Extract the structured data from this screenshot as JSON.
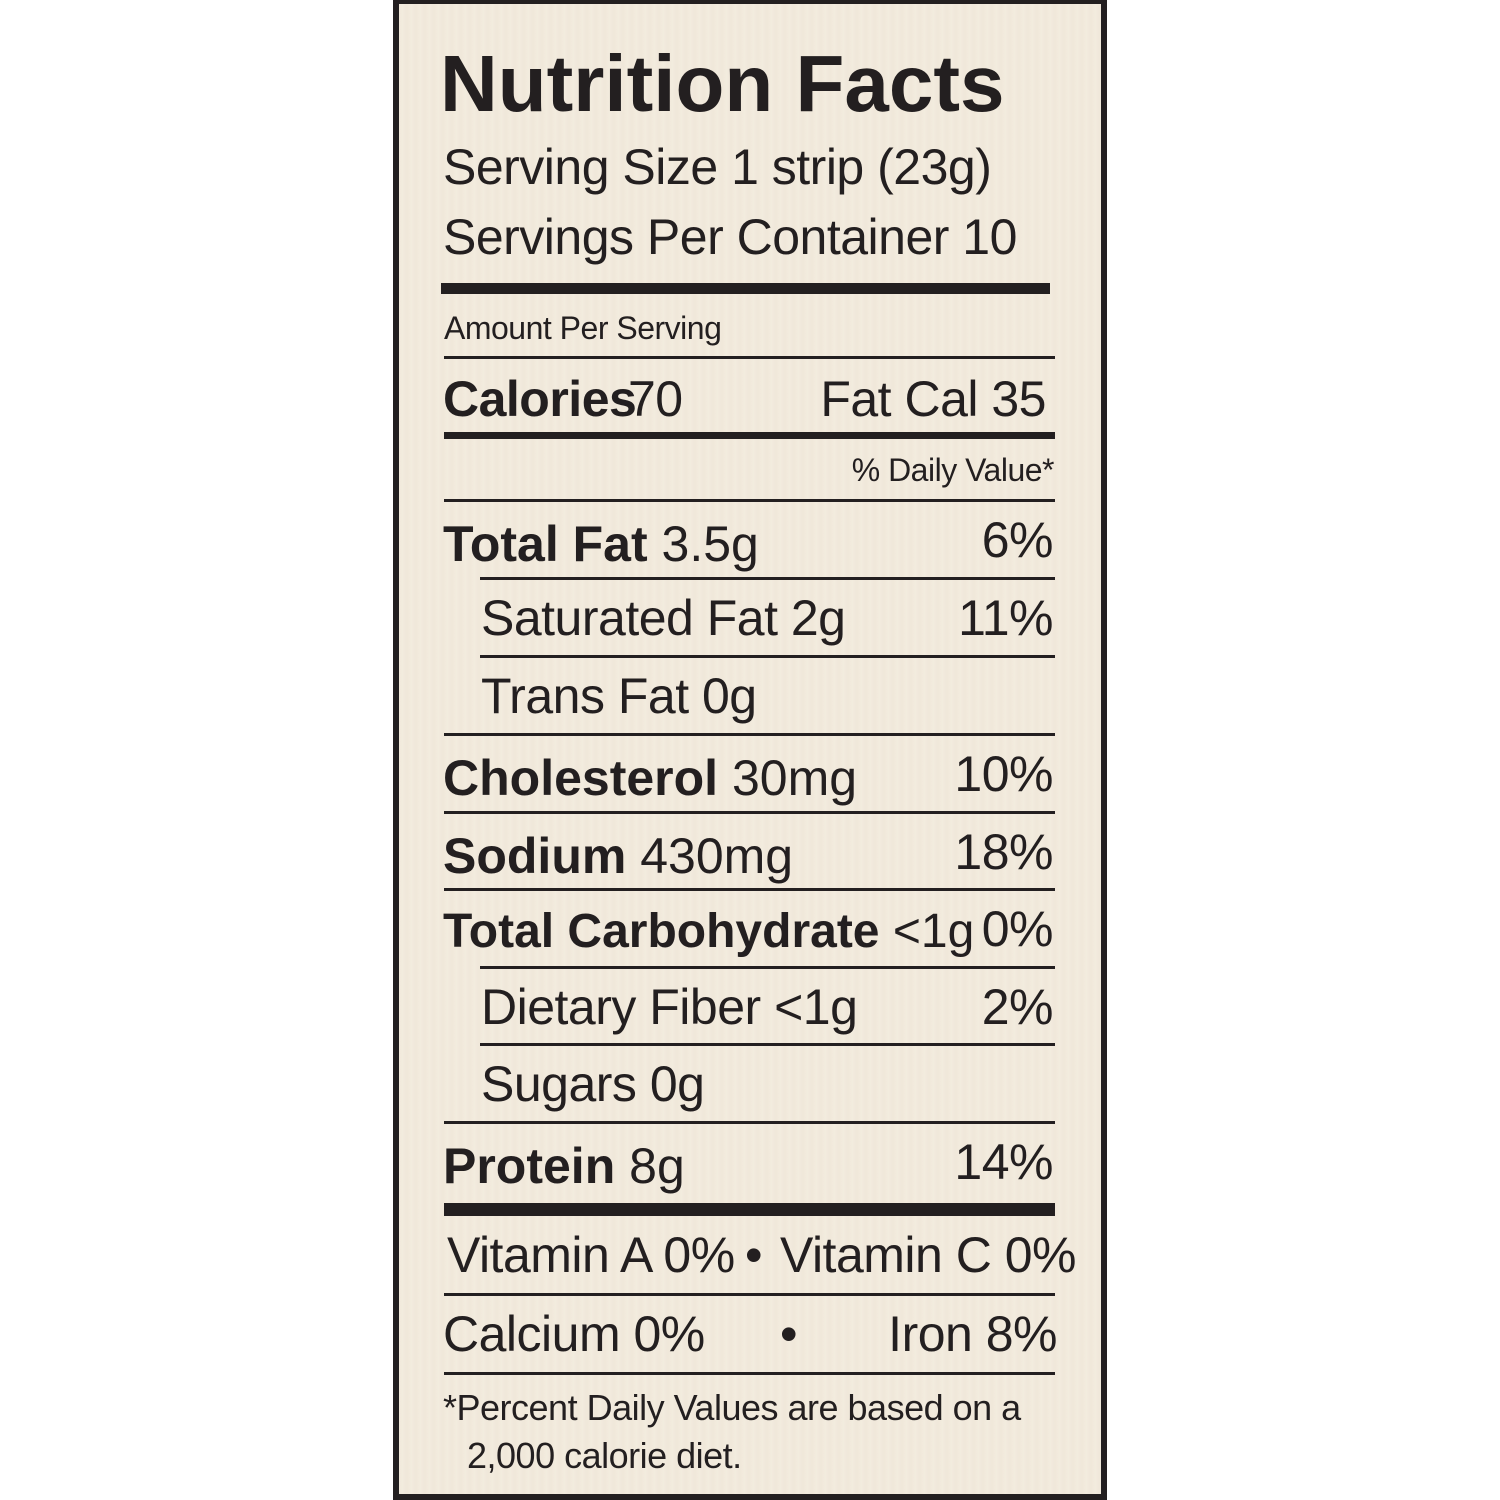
{
  "label": {
    "title": "Nutrition Facts",
    "serving_size": "Serving Size 1 strip (23g)",
    "servings_per_container": "Servings Per Container 10",
    "amount_per_serving": "Amount Per Serving",
    "calories_label": "Calories",
    "calories_value": "70",
    "fat_cal": "Fat Cal 35",
    "daily_value_header": "% Daily Value*",
    "nutrients": [
      {
        "name": "Total Fat",
        "amount": "3.5g",
        "dv": "6%"
      },
      {
        "name": "Saturated Fat 2g",
        "dv": "11%"
      },
      {
        "name": "Trans Fat 0g"
      },
      {
        "name": "Cholesterol",
        "amount": "30mg",
        "dv": "10%"
      },
      {
        "name": "Sodium",
        "amount": "430mg",
        "dv": "18%"
      },
      {
        "name": "Total Carbohydrate",
        "amount": "<1g",
        "dv": "0%"
      },
      {
        "name": "Dietary Fiber <1g",
        "dv": "2%"
      },
      {
        "name": "Sugars 0g"
      },
      {
        "name": "Protein",
        "amount": "8g",
        "dv": "14%"
      }
    ],
    "vitamins": {
      "vitamin_a": "Vitamin A 0%",
      "vitamin_c": "Vitamin C 0%",
      "calcium": "Calcium 0%",
      "iron": "Iron 8%",
      "bullet": "•"
    },
    "footnote_line1": "*Percent Daily Values are based on a",
    "footnote_line2": "2,000 calorie diet."
  },
  "colors": {
    "background": "#f3ebdd",
    "ink": "#231f20"
  }
}
